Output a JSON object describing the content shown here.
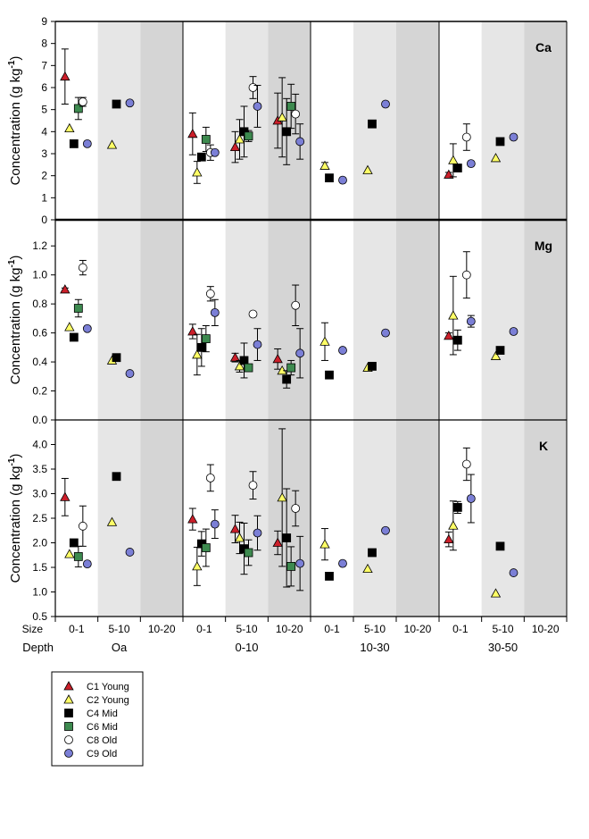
{
  "chart_data": {
    "type": "scatter",
    "title": "",
    "ylabel": "Concentration (g kg-1)",
    "ylabel_base": "Concentration (g kg",
    "ylabel_sup": "-1",
    "ylabel_close": ")",
    "x_row_labels": {
      "size": "Size",
      "depth": "Depth"
    },
    "depths": [
      "Oa",
      "0-10",
      "10-30",
      "30-50"
    ],
    "sizes": [
      "0-1",
      "5-10",
      "10-20"
    ],
    "legend_position": "bottom-left",
    "series": [
      {
        "key": "C1",
        "name": "C1 Young",
        "marker": "triangle",
        "color": "#cc1f2a"
      },
      {
        "key": "C2",
        "name": "C2 Young",
        "marker": "triangle",
        "color": "#ffff66"
      },
      {
        "key": "C4",
        "name": "C4 Mid",
        "marker": "square",
        "color": "#000000"
      },
      {
        "key": "C6",
        "name": "C6 Mid",
        "marker": "square",
        "color": "#3d8a4f"
      },
      {
        "key": "C8",
        "name": "C8 Old",
        "marker": "circle",
        "color": "#ffffff"
      },
      {
        "key": "C9",
        "name": "C9 Old",
        "marker": "circle",
        "color": "#7b7fd6"
      }
    ],
    "panels": [
      {
        "element": "Ca",
        "ylim": [
          0,
          9
        ],
        "yticks": [
          "0",
          "1",
          "2",
          "3",
          "4",
          "5",
          "6",
          "7",
          "8",
          "9"
        ],
        "ytick_values": [
          0,
          1,
          2,
          3,
          4,
          5,
          6,
          7,
          8,
          9
        ],
        "points": [
          {
            "s": "C1",
            "d": 0,
            "z": 0,
            "y": 6.5,
            "err": 1.25
          },
          {
            "s": "C2",
            "d": 0,
            "z": 0,
            "y": 4.15
          },
          {
            "s": "C4",
            "d": 0,
            "z": 0,
            "y": 3.45
          },
          {
            "s": "C6",
            "d": 0,
            "z": 0,
            "y": 5.05,
            "err": 0.5
          },
          {
            "s": "C8",
            "d": 0,
            "z": 0,
            "y": 5.35,
            "err": 0.2
          },
          {
            "s": "C9",
            "d": 0,
            "z": 0,
            "y": 3.45
          },
          {
            "s": "C2",
            "d": 0,
            "z": 1,
            "y": 3.4
          },
          {
            "s": "C4",
            "d": 0,
            "z": 1,
            "y": 5.25
          },
          {
            "s": "C9",
            "d": 0,
            "z": 1,
            "y": 5.3
          },
          {
            "s": "C1",
            "d": 1,
            "z": 0,
            "y": 3.9,
            "err": 0.95
          },
          {
            "s": "C2",
            "d": 1,
            "z": 0,
            "y": 2.15,
            "err": 0.5
          },
          {
            "s": "C4",
            "d": 1,
            "z": 0,
            "y": 2.85
          },
          {
            "s": "C6",
            "d": 1,
            "z": 0,
            "y": 3.65,
            "err": 0.55
          },
          {
            "s": "C8",
            "d": 1,
            "z": 0,
            "y": 3.05,
            "err": 0.35
          },
          {
            "s": "C9",
            "d": 1,
            "z": 0,
            "y": 3.05
          },
          {
            "s": "C1",
            "d": 1,
            "z": 1,
            "y": 3.3,
            "err": 0.7
          },
          {
            "s": "C2",
            "d": 1,
            "z": 1,
            "y": 3.65,
            "err": 0.9
          },
          {
            "s": "C4",
            "d": 1,
            "z": 1,
            "y": 4.0,
            "err": 1.15
          },
          {
            "s": "C6",
            "d": 1,
            "z": 1,
            "y": 3.8,
            "err": 0.25
          },
          {
            "s": "C8",
            "d": 1,
            "z": 1,
            "y": 6.0,
            "err": 0.5
          },
          {
            "s": "C9",
            "d": 1,
            "z": 1,
            "y": 5.15,
            "err": 0.95
          },
          {
            "s": "C1",
            "d": 1,
            "z": 2,
            "y": 4.5,
            "err": 1.25
          },
          {
            "s": "C2",
            "d": 1,
            "z": 2,
            "y": 4.65,
            "err": 1.8
          },
          {
            "s": "C4",
            "d": 1,
            "z": 2,
            "y": 4.0,
            "err": 1.5
          },
          {
            "s": "C6",
            "d": 1,
            "z": 2,
            "y": 5.15,
            "err": 1.0
          },
          {
            "s": "C8",
            "d": 1,
            "z": 2,
            "y": 4.8,
            "err": 0.9
          },
          {
            "s": "C9",
            "d": 1,
            "z": 2,
            "y": 3.55,
            "err": 0.8
          },
          {
            "s": "C2",
            "d": 2,
            "z": 0,
            "y": 2.45,
            "err": 0.15
          },
          {
            "s": "C4",
            "d": 2,
            "z": 0,
            "y": 1.9
          },
          {
            "s": "C9",
            "d": 2,
            "z": 0,
            "y": 1.8
          },
          {
            "s": "C2",
            "d": 2,
            "z": 1,
            "y": 2.25
          },
          {
            "s": "C4",
            "d": 2,
            "z": 1,
            "y": 4.35
          },
          {
            "s": "C9",
            "d": 2,
            "z": 1,
            "y": 5.25
          },
          {
            "s": "C1",
            "d": 3,
            "z": 0,
            "y": 2.05,
            "err": 0.1
          },
          {
            "s": "C2",
            "d": 3,
            "z": 0,
            "y": 2.7,
            "err": 0.75
          },
          {
            "s": "C4",
            "d": 3,
            "z": 0,
            "y": 2.35
          },
          {
            "s": "C8",
            "d": 3,
            "z": 0,
            "y": 3.75,
            "err": 0.6
          },
          {
            "s": "C9",
            "d": 3,
            "z": 0,
            "y": 2.55
          },
          {
            "s": "C2",
            "d": 3,
            "z": 1,
            "y": 2.8
          },
          {
            "s": "C4",
            "d": 3,
            "z": 1,
            "y": 3.55
          },
          {
            "s": "C9",
            "d": 3,
            "z": 1,
            "y": 3.75
          }
        ]
      },
      {
        "element": "Mg",
        "ylim": [
          0,
          1.38
        ],
        "yticks": [
          "0.0",
          "0.2",
          "0.4",
          "0.6",
          "0.8",
          "1.0",
          "1.2"
        ],
        "ytick_values": [
          0,
          0.2,
          0.4,
          0.6,
          0.8,
          1.0,
          1.2
        ],
        "points": [
          {
            "s": "C1",
            "d": 0,
            "z": 0,
            "y": 0.9,
            "err": 0.01
          },
          {
            "s": "C2",
            "d": 0,
            "z": 0,
            "y": 0.64
          },
          {
            "s": "C4",
            "d": 0,
            "z": 0,
            "y": 0.57
          },
          {
            "s": "C6",
            "d": 0,
            "z": 0,
            "y": 0.77,
            "err": 0.06
          },
          {
            "s": "C8",
            "d": 0,
            "z": 0,
            "y": 1.05,
            "err": 0.05
          },
          {
            "s": "C9",
            "d": 0,
            "z": 0,
            "y": 0.63
          },
          {
            "s": "C2",
            "d": 0,
            "z": 1,
            "y": 0.41
          },
          {
            "s": "C4",
            "d": 0,
            "z": 1,
            "y": 0.43
          },
          {
            "s": "C9",
            "d": 0,
            "z": 1,
            "y": 0.32
          },
          {
            "s": "C1",
            "d": 1,
            "z": 0,
            "y": 0.61,
            "err": 0.05
          },
          {
            "s": "C2",
            "d": 1,
            "z": 0,
            "y": 0.45,
            "err": 0.14
          },
          {
            "s": "C4",
            "d": 1,
            "z": 0,
            "y": 0.5,
            "err": 0.13
          },
          {
            "s": "C6",
            "d": 1,
            "z": 0,
            "y": 0.56,
            "err": 0.09
          },
          {
            "s": "C8",
            "d": 1,
            "z": 0,
            "y": 0.87,
            "err": 0.05
          },
          {
            "s": "C9",
            "d": 1,
            "z": 0,
            "y": 0.74,
            "err": 0.09
          },
          {
            "s": "C1",
            "d": 1,
            "z": 1,
            "y": 0.43,
            "err": 0.03
          },
          {
            "s": "C2",
            "d": 1,
            "z": 1,
            "y": 0.37,
            "err": 0.04
          },
          {
            "s": "C4",
            "d": 1,
            "z": 1,
            "y": 0.41,
            "err": 0.12
          },
          {
            "s": "C6",
            "d": 1,
            "z": 1,
            "y": 0.36
          },
          {
            "s": "C8",
            "d": 1,
            "z": 1,
            "y": 0.73
          },
          {
            "s": "C9",
            "d": 1,
            "z": 1,
            "y": 0.52,
            "err": 0.11
          },
          {
            "s": "C1",
            "d": 1,
            "z": 2,
            "y": 0.42,
            "err": 0.07
          },
          {
            "s": "C2",
            "d": 1,
            "z": 2,
            "y": 0.34
          },
          {
            "s": "C4",
            "d": 1,
            "z": 2,
            "y": 0.28,
            "err": 0.06
          },
          {
            "s": "C6",
            "d": 1,
            "z": 2,
            "y": 0.36,
            "err": 0.05
          },
          {
            "s": "C8",
            "d": 1,
            "z": 2,
            "y": 0.79,
            "err": 0.14
          },
          {
            "s": "C9",
            "d": 1,
            "z": 2,
            "y": 0.46,
            "err": 0.17
          },
          {
            "s": "C2",
            "d": 2,
            "z": 0,
            "y": 0.54,
            "err": 0.13
          },
          {
            "s": "C4",
            "d": 2,
            "z": 0,
            "y": 0.31
          },
          {
            "s": "C9",
            "d": 2,
            "z": 0,
            "y": 0.48
          },
          {
            "s": "C2",
            "d": 2,
            "z": 1,
            "y": 0.36
          },
          {
            "s": "C4",
            "d": 2,
            "z": 1,
            "y": 0.37
          },
          {
            "s": "C9",
            "d": 2,
            "z": 1,
            "y": 0.6
          },
          {
            "s": "C1",
            "d": 3,
            "z": 0,
            "y": 0.58,
            "err": 0.02
          },
          {
            "s": "C2",
            "d": 3,
            "z": 0,
            "y": 0.72,
            "err": 0.27
          },
          {
            "s": "C4",
            "d": 3,
            "z": 0,
            "y": 0.55,
            "err": 0.07
          },
          {
            "s": "C8",
            "d": 3,
            "z": 0,
            "y": 1.0,
            "err": 0.16
          },
          {
            "s": "C9",
            "d": 3,
            "z": 0,
            "y": 0.68,
            "err": 0.04
          },
          {
            "s": "C2",
            "d": 3,
            "z": 1,
            "y": 0.44
          },
          {
            "s": "C4",
            "d": 3,
            "z": 1,
            "y": 0.48
          },
          {
            "s": "C9",
            "d": 3,
            "z": 1,
            "y": 0.61
          }
        ]
      },
      {
        "element": "K",
        "ylim": [
          0.5,
          4.5
        ],
        "yticks": [
          "0.5",
          "1.0",
          "1.5",
          "2.0",
          "2.5",
          "3.0",
          "3.5",
          "4.0"
        ],
        "ytick_values": [
          0.5,
          1.0,
          1.5,
          2.0,
          2.5,
          3.0,
          3.5,
          4.0
        ],
        "points": [
          {
            "s": "C1",
            "d": 0,
            "z": 0,
            "y": 2.93,
            "err": 0.38
          },
          {
            "s": "C2",
            "d": 0,
            "z": 0,
            "y": 1.77
          },
          {
            "s": "C4",
            "d": 0,
            "z": 0,
            "y": 2.0
          },
          {
            "s": "C6",
            "d": 0,
            "z": 0,
            "y": 1.72,
            "err": 0.21
          },
          {
            "s": "C8",
            "d": 0,
            "z": 0,
            "y": 2.34,
            "err": 0.41
          },
          {
            "s": "C9",
            "d": 0,
            "z": 0,
            "y": 1.57
          },
          {
            "s": "C2",
            "d": 0,
            "z": 1,
            "y": 2.42
          },
          {
            "s": "C4",
            "d": 0,
            "z": 1,
            "y": 3.35
          },
          {
            "s": "C9",
            "d": 0,
            "z": 1,
            "y": 1.81
          },
          {
            "s": "C1",
            "d": 1,
            "z": 0,
            "y": 2.48,
            "err": 0.22
          },
          {
            "s": "C2",
            "d": 1,
            "z": 0,
            "y": 1.52,
            "err": 0.39
          },
          {
            "s": "C4",
            "d": 1,
            "z": 0,
            "y": 1.98,
            "err": 0.25
          },
          {
            "s": "C6",
            "d": 1,
            "z": 0,
            "y": 1.9,
            "err": 0.38
          },
          {
            "s": "C8",
            "d": 1,
            "z": 0,
            "y": 3.32,
            "err": 0.27
          },
          {
            "s": "C9",
            "d": 1,
            "z": 0,
            "y": 2.38,
            "err": 0.29
          },
          {
            "s": "C1",
            "d": 1,
            "z": 1,
            "y": 2.28,
            "err": 0.28
          },
          {
            "s": "C2",
            "d": 1,
            "z": 1,
            "y": 2.1,
            "err": 0.32
          },
          {
            "s": "C4",
            "d": 1,
            "z": 1,
            "y": 1.88,
            "err": 0.52
          },
          {
            "s": "C6",
            "d": 1,
            "z": 1,
            "y": 1.8,
            "err": 0.26
          },
          {
            "s": "C8",
            "d": 1,
            "z": 1,
            "y": 3.17,
            "err": 0.28
          },
          {
            "s": "C9",
            "d": 1,
            "z": 1,
            "y": 2.2,
            "err": 0.35
          },
          {
            "s": "C1",
            "d": 1,
            "z": 2,
            "y": 2.0,
            "err": 0.24
          },
          {
            "s": "C2",
            "d": 1,
            "z": 2,
            "y": 2.92,
            "err": 1.4
          },
          {
            "s": "C4",
            "d": 1,
            "z": 2,
            "y": 2.1,
            "err": 1.0
          },
          {
            "s": "C6",
            "d": 1,
            "z": 2,
            "y": 1.52,
            "err": 0.4
          },
          {
            "s": "C8",
            "d": 1,
            "z": 2,
            "y": 2.7,
            "err": 0.36
          },
          {
            "s": "C9",
            "d": 1,
            "z": 2,
            "y": 1.58,
            "err": 0.55
          },
          {
            "s": "C2",
            "d": 2,
            "z": 0,
            "y": 1.97,
            "err": 0.32
          },
          {
            "s": "C4",
            "d": 2,
            "z": 0,
            "y": 1.32
          },
          {
            "s": "C9",
            "d": 2,
            "z": 0,
            "y": 1.58
          },
          {
            "s": "C2",
            "d": 2,
            "z": 1,
            "y": 1.47
          },
          {
            "s": "C4",
            "d": 2,
            "z": 1,
            "y": 1.8
          },
          {
            "s": "C9",
            "d": 2,
            "z": 1,
            "y": 2.25
          },
          {
            "s": "C1",
            "d": 3,
            "z": 0,
            "y": 2.07,
            "err": 0.15
          },
          {
            "s": "C2",
            "d": 3,
            "z": 0,
            "y": 2.35,
            "err": 0.5
          },
          {
            "s": "C4",
            "d": 3,
            "z": 0,
            "y": 2.72,
            "err": 0.12
          },
          {
            "s": "C8",
            "d": 3,
            "z": 0,
            "y": 3.6,
            "err": 0.33
          },
          {
            "s": "C9",
            "d": 3,
            "z": 0,
            "y": 2.9,
            "err": 0.49
          },
          {
            "s": "C2",
            "d": 3,
            "z": 1,
            "y": 0.97
          },
          {
            "s": "C4",
            "d": 3,
            "z": 1,
            "y": 1.93
          },
          {
            "s": "C9",
            "d": 3,
            "z": 1,
            "y": 1.39
          }
        ]
      }
    ]
  },
  "colors": {
    "band_light": "#e6e6e6",
    "band_dark": "#d5d5d5",
    "axis": "#000000"
  }
}
